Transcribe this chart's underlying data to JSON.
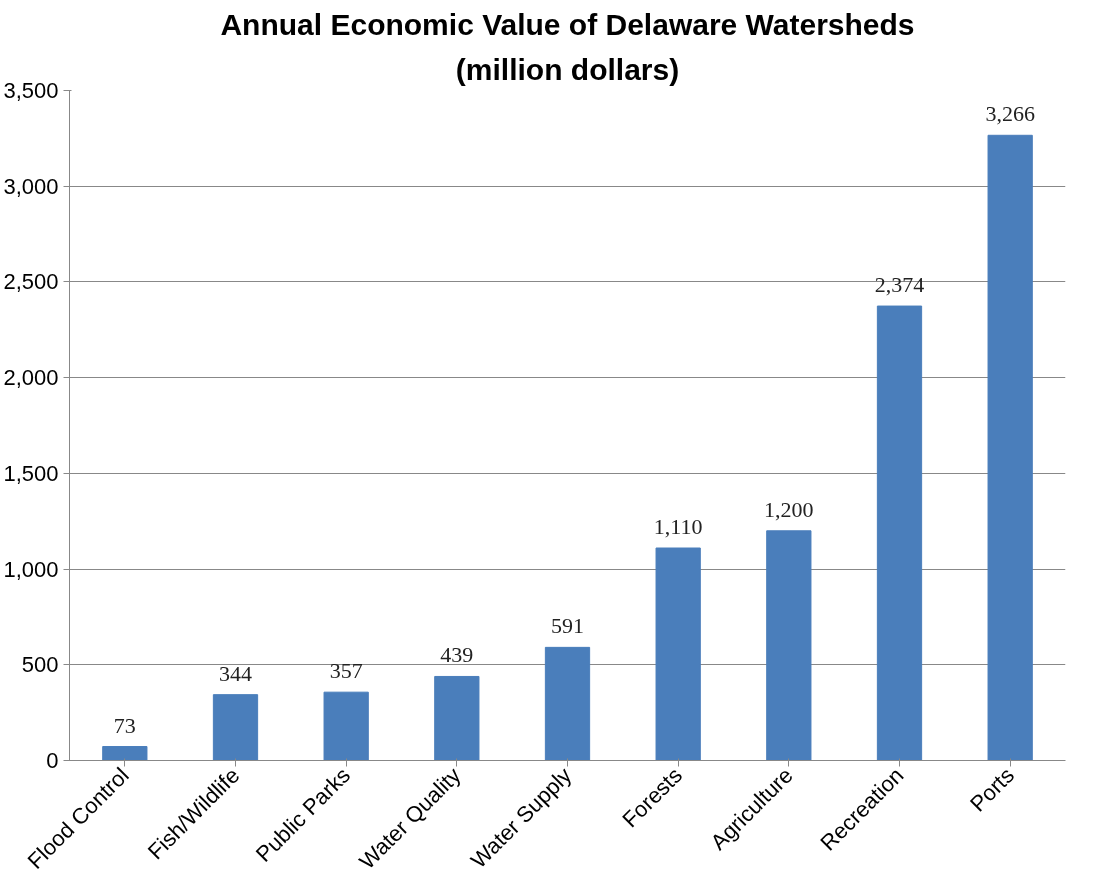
{
  "chart_data": {
    "type": "bar",
    "title": "Annual Economic Value of Delaware Watersheds",
    "subtitle": "(million dollars)",
    "categories": [
      "Flood Control",
      "Fish/Wildlife",
      "Public Parks",
      "Water Quality",
      "Water Supply",
      "Forests",
      "Agriculture",
      "Recreation",
      "Ports"
    ],
    "values": [
      73,
      344,
      357,
      439,
      591,
      1110,
      1200,
      2374,
      3266
    ],
    "value_labels": [
      "73",
      "344",
      "357",
      "439",
      "591",
      "1,110",
      "1,200",
      "2,374",
      "3,266"
    ],
    "color": "#4a7ebb",
    "ylim": [
      0,
      3500
    ],
    "yticks": [
      0,
      500,
      {
        "value": 1000,
        "label": "1,000"
      },
      {
        "value": 1500,
        "label": "1,500"
      },
      {
        "value": 2000,
        "label": "2,000"
      },
      {
        "value": 2500,
        "label": "2,500"
      },
      {
        "value": 3000,
        "label": "3,000"
      },
      {
        "value": 3500,
        "label": "3,500"
      }
    ],
    "grid": "y"
  }
}
